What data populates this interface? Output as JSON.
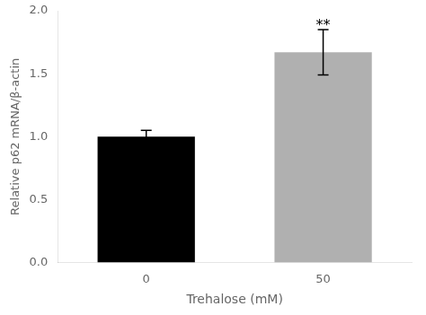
{
  "chart_data": {
    "type": "bar",
    "categories": [
      "0",
      "50"
    ],
    "values": [
      1.0,
      1.67
    ],
    "errors": [
      0.05,
      0.18
    ],
    "colors": [
      "#000000",
      "#b0b0b0"
    ],
    "xlabel": "Trehalose (mM)",
    "ylabel": "Relative p62 mRNA/β-actin",
    "ylim": [
      0,
      2.0
    ],
    "yticks": [
      {
        "value": 0,
        "label": "0.0"
      },
      0.5,
      {
        "value": 1,
        "label": "1.0"
      },
      1.5,
      {
        "value": 2,
        "label": "2.0"
      }
    ],
    "annotations": [
      {
        "text": "**",
        "x": "50",
        "y": 1.94
      }
    ],
    "grid": false
  }
}
